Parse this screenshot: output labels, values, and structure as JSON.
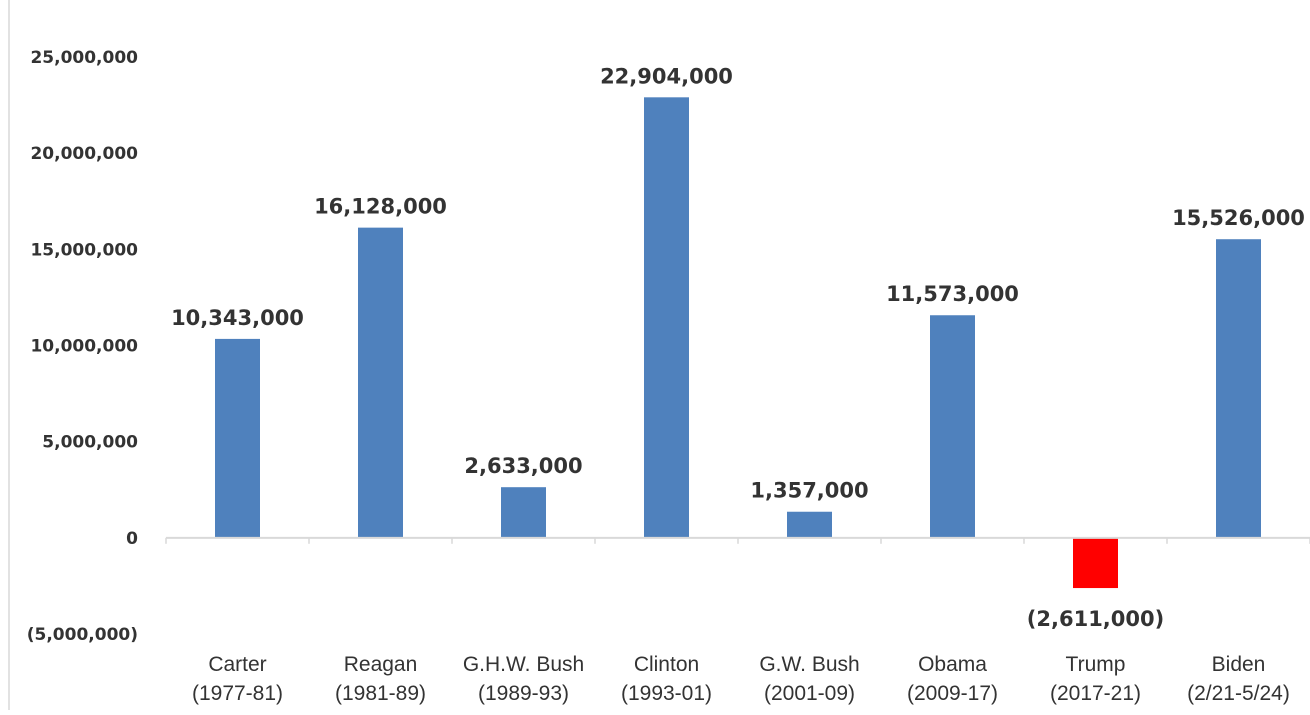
{
  "chart_data": {
    "type": "bar",
    "title": "",
    "xlabel": "",
    "ylabel": "",
    "categories": [
      "Carter\n(1977-81)",
      "Reagan\n(1981-89)",
      "G.H.W. Bush\n(1989-93)",
      "Clinton\n(1993-01)",
      "G.W. Bush\n(2001-09)",
      "Obama\n(2009-17)",
      "Trump\n(2017-21)",
      "Biden\n(2/21-5/24)"
    ],
    "values": [
      10343000,
      16128000,
      2633000,
      22904000,
      1357000,
      11573000,
      -2611000,
      15526000
    ],
    "data_labels": [
      "10,343,000",
      "16,128,000",
      "2,633,000",
      "22,904,000",
      "1,357,000",
      "11,573,000",
      "(2,611,000)",
      "15,526,000"
    ],
    "ylim": [
      -5000000,
      25000000
    ],
    "yticks": [
      25000000,
      20000000,
      15000000,
      10000000,
      5000000,
      0,
      -5000000
    ],
    "ytick_labels": [
      "25,000,000",
      "20,000,000",
      "15,000,000",
      "10,000,000",
      "5,000,000",
      "0",
      "(5,000,000)"
    ],
    "grid": false,
    "legend": "none",
    "colors": {
      "positive_bar": "#4f81bd",
      "negative_bar": "#ff0000",
      "negative_text": "#ff0000",
      "text": "#333333",
      "axis": "#d9d9d9"
    }
  }
}
